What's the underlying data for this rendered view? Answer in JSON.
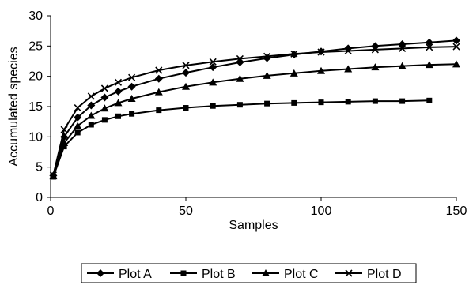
{
  "chart_data": {
    "type": "line",
    "xlabel": "Samples",
    "ylabel": "Accumulated species",
    "xlim": [
      0,
      150
    ],
    "ylim": [
      0,
      30
    ],
    "x_ticks": [
      0,
      50,
      100,
      150
    ],
    "y_ticks": [
      0,
      5,
      10,
      15,
      20,
      25,
      30
    ],
    "grid": false,
    "legend_position": "bottom",
    "series": [
      {
        "name": "Plot A",
        "marker": "diamond",
        "x": [
          1,
          5,
          10,
          15,
          20,
          25,
          30,
          40,
          50,
          60,
          70,
          80,
          90,
          100,
          110,
          120,
          130,
          140,
          150
        ],
        "y": [
          3.6,
          10.0,
          13.2,
          15.2,
          16.5,
          17.5,
          18.3,
          19.6,
          20.6,
          21.5,
          22.3,
          23.0,
          23.6,
          24.1,
          24.6,
          25.0,
          25.3,
          25.6,
          25.9
        ]
      },
      {
        "name": "Plot B",
        "marker": "square",
        "x": [
          1,
          5,
          10,
          15,
          20,
          25,
          30,
          40,
          50,
          60,
          70,
          80,
          90,
          100,
          110,
          120,
          130,
          140
        ],
        "y": [
          3.4,
          8.4,
          10.7,
          12.0,
          12.8,
          13.4,
          13.8,
          14.4,
          14.8,
          15.1,
          15.3,
          15.5,
          15.6,
          15.7,
          15.8,
          15.9,
          15.9,
          16.0
        ]
      },
      {
        "name": "Plot C",
        "marker": "triangle",
        "x": [
          1,
          5,
          10,
          15,
          20,
          25,
          30,
          40,
          50,
          60,
          70,
          80,
          90,
          100,
          110,
          120,
          130,
          140,
          150
        ],
        "y": [
          3.5,
          9.0,
          11.8,
          13.5,
          14.7,
          15.6,
          16.3,
          17.4,
          18.3,
          19.0,
          19.6,
          20.1,
          20.5,
          20.9,
          21.2,
          21.5,
          21.7,
          21.9,
          22.0
        ]
      },
      {
        "name": "Plot D",
        "marker": "x",
        "x": [
          1,
          5,
          10,
          15,
          20,
          25,
          30,
          40,
          50,
          60,
          70,
          80,
          90,
          100,
          110,
          120,
          130,
          140,
          150
        ],
        "y": [
          3.7,
          11.2,
          14.8,
          16.7,
          18.0,
          19.0,
          19.8,
          21.0,
          21.8,
          22.4,
          22.9,
          23.3,
          23.7,
          24.0,
          24.2,
          24.4,
          24.6,
          24.8,
          24.9
        ]
      }
    ]
  }
}
